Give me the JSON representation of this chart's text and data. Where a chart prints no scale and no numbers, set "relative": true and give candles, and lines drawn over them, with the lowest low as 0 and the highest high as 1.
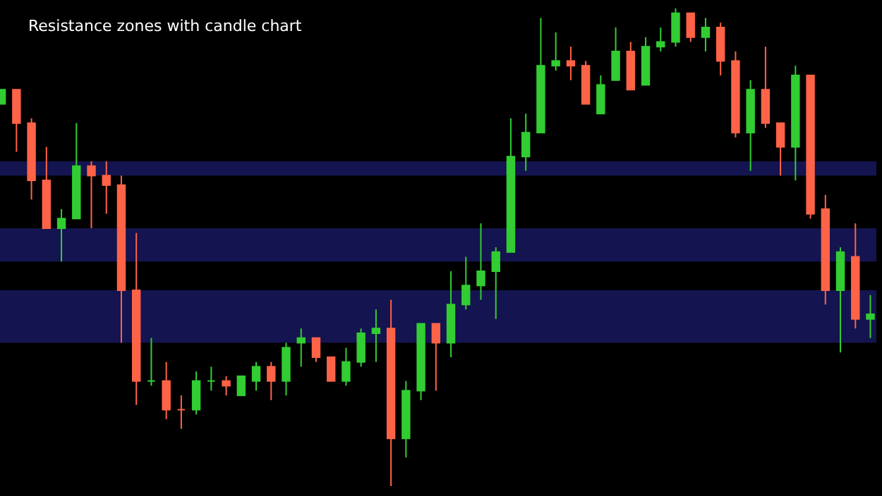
{
  "chart_data": {
    "type": "candlestick",
    "title": "Resistance zones with candle chart",
    "relative": true,
    "categories": [
      null,
      null,
      null,
      null,
      null,
      null,
      null,
      null,
      null,
      null,
      null,
      null,
      null,
      null,
      null,
      null,
      null,
      null,
      null,
      null,
      null,
      null,
      null,
      null,
      null,
      null,
      null,
      null,
      null,
      null,
      null,
      null,
      null,
      null,
      null,
      null,
      null,
      null,
      null,
      null,
      null,
      null,
      null,
      null,
      null,
      null,
      null,
      null,
      null,
      null,
      null,
      null,
      null,
      null,
      null,
      null,
      null,
      null,
      null
    ],
    "ohlc": [
      [
        0.8,
        0.83,
        0.8,
        0.83
      ],
      [
        0.83,
        0.83,
        0.7,
        0.76
      ],
      [
        0.76,
        0.77,
        0.6,
        0.64
      ],
      [
        0.64,
        0.71,
        0.54,
        0.54
      ],
      [
        0.54,
        0.58,
        0.47,
        0.56
      ],
      [
        0.56,
        0.76,
        0.56,
        0.67
      ],
      [
        0.67,
        0.68,
        0.54,
        0.65
      ],
      [
        0.65,
        0.68,
        0.57,
        0.63
      ],
      [
        0.63,
        0.65,
        0.3,
        0.41
      ],
      [
        0.41,
        0.53,
        0.17,
        0.22
      ],
      [
        0.22,
        0.31,
        0.21,
        0.22
      ],
      [
        0.22,
        0.26,
        0.14,
        0.16
      ],
      [
        0.16,
        0.19,
        0.12,
        0.16
      ],
      [
        0.16,
        0.24,
        0.15,
        0.22
      ],
      [
        0.22,
        0.25,
        0.2,
        0.22
      ],
      [
        0.22,
        0.23,
        0.19,
        0.21
      ],
      [
        0.19,
        0.23,
        0.19,
        0.23
      ],
      [
        0.22,
        0.26,
        0.2,
        0.25
      ],
      [
        0.25,
        0.26,
        0.18,
        0.22
      ],
      [
        0.22,
        0.3,
        0.19,
        0.29
      ],
      [
        0.3,
        0.33,
        0.25,
        0.31
      ],
      [
        0.31,
        0.31,
        0.26,
        0.27
      ],
      [
        0.27,
        0.27,
        0.22,
        0.22
      ],
      [
        0.22,
        0.29,
        0.21,
        0.26
      ],
      [
        0.26,
        0.33,
        0.25,
        0.32
      ],
      [
        0.32,
        0.37,
        0.26,
        0.33
      ],
      [
        0.33,
        0.39,
        0,
        0.1
      ],
      [
        0.1,
        0.22,
        0.06,
        0.2
      ],
      [
        0.2,
        0.34,
        0.18,
        0.34
      ],
      [
        0.34,
        0.34,
        0.2,
        0.3
      ],
      [
        0.3,
        0.45,
        0.27,
        0.38
      ],
      [
        0.38,
        0.48,
        0.37,
        0.42
      ],
      [
        0.42,
        0.55,
        0.39,
        0.45
      ],
      [
        0.45,
        0.5,
        0.35,
        0.49
      ],
      [
        0.49,
        0.77,
        0.49,
        0.69
      ],
      [
        0.69,
        0.78,
        0.66,
        0.74
      ],
      [
        0.74,
        0.98,
        0.74,
        0.88
      ],
      [
        0.88,
        0.95,
        0.87,
        0.89
      ],
      [
        0.89,
        0.92,
        0.85,
        0.88
      ],
      [
        0.88,
        0.89,
        0.8,
        0.8
      ],
      [
        0.78,
        0.86,
        0.78,
        0.84
      ],
      [
        0.85,
        0.96,
        0.85,
        0.91
      ],
      [
        0.91,
        0.93,
        0.83,
        0.83
      ],
      [
        0.84,
        0.94,
        0.84,
        0.92
      ],
      [
        0.92,
        0.96,
        0.91,
        0.93
      ],
      [
        0.93,
        1,
        0.92,
        0.99
      ],
      [
        0.99,
        0.99,
        0.93,
        0.94
      ],
      [
        0.94,
        0.98,
        0.91,
        0.96
      ],
      [
        0.96,
        0.97,
        0.86,
        0.89
      ],
      [
        0.89,
        0.91,
        0.73,
        0.74
      ],
      [
        0.74,
        0.85,
        0.66,
        0.83
      ],
      [
        0.83,
        0.92,
        0.75,
        0.76
      ],
      [
        0.76,
        0.76,
        0.65,
        0.71
      ],
      [
        0.71,
        0.88,
        0.64,
        0.86
      ],
      [
        0.86,
        0.86,
        0.56,
        0.57
      ],
      [
        0.58,
        0.61,
        0.38,
        0.41
      ],
      [
        0.41,
        0.5,
        0.28,
        0.49
      ],
      [
        0.48,
        0.55,
        0.33,
        0.35
      ],
      [
        0.35,
        0.4,
        0.31,
        0.36
      ]
    ],
    "colors": [
      "#32cd32",
      "#ff6347",
      "#ff6347",
      "#ff6347",
      "#32cd32",
      "#32cd32",
      "#ff6347",
      "#ff6347",
      "#ff6347",
      "#ff6347",
      "#32cd32",
      "#ff6347",
      "#ff6347",
      "#32cd32",
      "#32cd32",
      "#ff6347",
      "#32cd32",
      "#32cd32",
      "#ff6347",
      "#32cd32",
      "#32cd32",
      "#ff6347",
      "#ff6347",
      "#32cd32",
      "#32cd32",
      "#32cd32",
      "#ff6347",
      "#32cd32",
      "#32cd32",
      "#ff6347",
      "#32cd32",
      "#32cd32",
      "#32cd32",
      "#32cd32",
      "#32cd32",
      "#32cd32",
      "#32cd32",
      "#32cd32",
      "#ff6347",
      "#ff6347",
      "#32cd32",
      "#32cd32",
      "#ff6347",
      "#32cd32",
      "#32cd32",
      "#32cd32",
      "#ff6347",
      "#32cd32",
      "#ff6347",
      "#ff6347",
      "#32cd32",
      "#ff6347",
      "#ff6347",
      "#32cd32",
      "#ff6347",
      "#ff6347",
      "#32cd32",
      "#ff6347",
      "#32cd32"
    ],
    "bands": [
      {
        "axis": "y",
        "from": 0.65,
        "to": 0.68,
        "color": "#141450"
      },
      {
        "axis": "y",
        "from": 0.47,
        "to": 0.54,
        "color": "#141450"
      },
      {
        "axis": "y",
        "from": 0.3,
        "to": 0.41,
        "color": "#141450"
      }
    ]
  }
}
